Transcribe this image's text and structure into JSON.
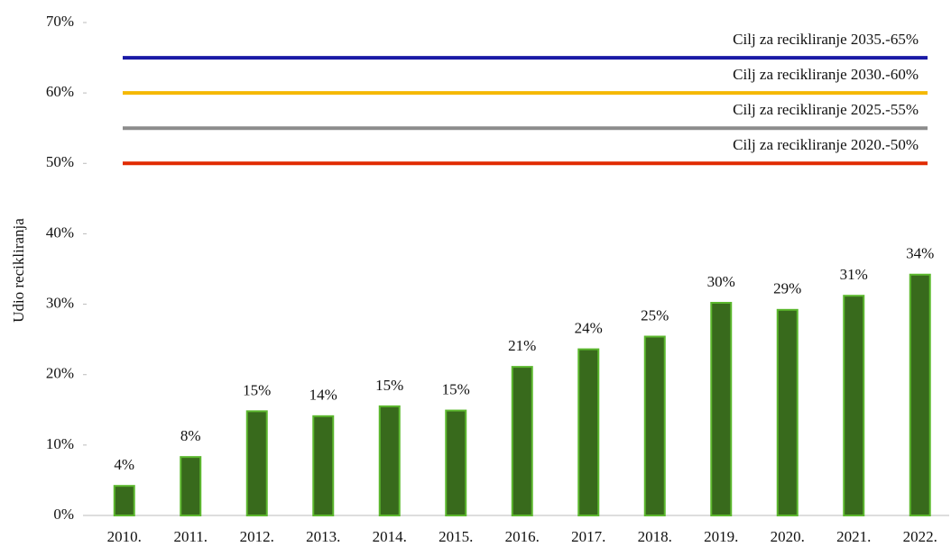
{
  "chart_data": {
    "type": "bar",
    "y_axis_label": "Udio recikliranja",
    "categories": [
      "2010.",
      "2011.",
      "2012.",
      "2013.",
      "2014.",
      "2015.",
      "2016.",
      "2017.",
      "2018.",
      "2019.",
      "2020.",
      "2021.",
      "2022."
    ],
    "values": [
      4.2,
      8.3,
      14.8,
      14.1,
      15.5,
      14.9,
      21.1,
      23.6,
      25.4,
      30.2,
      29.2,
      31.2,
      34.2
    ],
    "value_labels": [
      "4%",
      "8%",
      "15%",
      "14%",
      "15%",
      "15%",
      "21%",
      "24%",
      "25%",
      "30%",
      "29%",
      "31%",
      "34%"
    ],
    "color": "#386a1c",
    "edge_color": "#5cb82e",
    "ylim": [
      0,
      70
    ],
    "yticks": [
      {
        "value": 0,
        "label": "0%"
      },
      {
        "value": 10,
        "label": "10%"
      },
      {
        "value": 20,
        "label": "20%"
      },
      {
        "value": 30,
        "label": "30%"
      },
      {
        "value": 40,
        "label": "40%"
      },
      {
        "value": 50,
        "label": "50%"
      },
      {
        "value": 60,
        "label": "60%"
      },
      {
        "value": 70,
        "label": "70%"
      }
    ],
    "target_lines": [
      {
        "label": "Cilj za recikliranje 2035.-65%",
        "value": 65,
        "color": "#1a1aa6"
      },
      {
        "label": "Cilj za recikliranje 2030.-60%",
        "value": 60,
        "color": "#f5b800"
      },
      {
        "label": "Cilj za recikliranje 2025.-55%",
        "value": 55,
        "color": "#8c8c8c"
      },
      {
        "label": "Cilj za recikliranje 2020.-50%",
        "value": 50,
        "color": "#e02a00"
      }
    ]
  }
}
